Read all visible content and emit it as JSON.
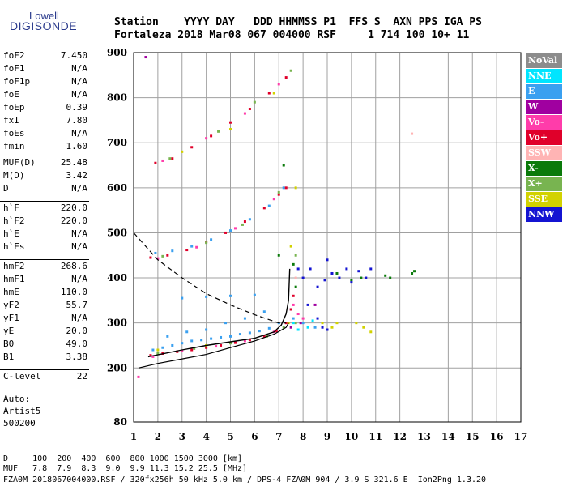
{
  "logo": {
    "top": "Lowell",
    "bottom": "DIGISONDE"
  },
  "header": {
    "line1": "Station    YYYY DAY   DDD HHMMSS P1  FFS S  AXN PPS IGA PS",
    "line2": "Fortaleza 2018 Mar08 067 004000 RSF     1 714 100 10+ 11"
  },
  "params_group1": [
    {
      "name": "foF2",
      "value": "7.450"
    },
    {
      "name": "foF1",
      "value": "N/A"
    },
    {
      "name": "foF1p",
      "value": "N/A"
    },
    {
      "name": "foE",
      "value": "N/A"
    },
    {
      "name": "foEp",
      "value": "0.39"
    },
    {
      "name": "fxI",
      "value": "7.80"
    },
    {
      "name": "foEs",
      "value": "N/A"
    },
    {
      "name": "fmin",
      "value": "1.60"
    }
  ],
  "params_group2": [
    {
      "name": "MUF(D)",
      "value": "25.48"
    },
    {
      "name": "M(D)",
      "value": "3.42"
    },
    {
      "name": "D",
      "value": "N/A"
    }
  ],
  "params_group3": [
    {
      "name": "h`F",
      "value": "220.0"
    },
    {
      "name": "h`F2",
      "value": "220.0"
    },
    {
      "name": "h`E",
      "value": "N/A"
    },
    {
      "name": "h`Es",
      "value": "N/A"
    }
  ],
  "params_group4": [
    {
      "name": "hmF2",
      "value": "268.6"
    },
    {
      "name": "hmF1",
      "value": "N/A"
    },
    {
      "name": "hmE",
      "value": "110.0"
    },
    {
      "name": "yF2",
      "value": "55.7"
    },
    {
      "name": "yF1",
      "value": "N/A"
    },
    {
      "name": "yE",
      "value": "20.0"
    },
    {
      "name": "B0",
      "value": "49.0"
    },
    {
      "name": "B1",
      "value": "3.38"
    }
  ],
  "params_group5": [
    {
      "name": "C-level",
      "value": "22"
    }
  ],
  "auto": {
    "line1": "Auto:",
    "line2": "Artist5",
    "line3": "500200"
  },
  "legend": [
    {
      "label": "NoVal",
      "color": "#8c8c8c"
    },
    {
      "label": "NNE",
      "color": "#00e5ff"
    },
    {
      "label": "E",
      "color": "#3aa0f0"
    },
    {
      "label": "W",
      "color": "#a000a0"
    },
    {
      "label": "Vo-",
      "color": "#ff3caa"
    },
    {
      "label": "Vo+",
      "color": "#e0002a"
    },
    {
      "label": "SSW",
      "color": "#ffb4b4"
    },
    {
      "label": "X-",
      "color": "#0a7a0a"
    },
    {
      "label": "X+",
      "color": "#78b450"
    },
    {
      "label": "SSE",
      "color": "#d2d200"
    },
    {
      "label": "NNW",
      "color": "#1414d2"
    }
  ],
  "bottom": {
    "d_row": "D     100  200  400  600  800 1000 1500 3000 [km]",
    "muf_row": "MUF   7.8  7.9  8.3  9.0  9.9 11.3 15.2 25.5 [MHz]",
    "footer": "FZA0M_2018067004000.RSF / 320fx256h 50 kHz 5.0 km / DPS-4 FZA0M 904 / 3.9 S 321.6 E  Ion2Png 1.3.20"
  },
  "chart_data": {
    "type": "scatter",
    "title": "",
    "xlabel": "",
    "ylabel": "",
    "xlim": [
      1,
      17
    ],
    "ylim": [
      80,
      900
    ],
    "x_ticks": [
      "1",
      "2",
      "3",
      "4",
      "5",
      "6",
      "7",
      "8",
      "9",
      "10",
      "11",
      "12",
      "13",
      "14",
      "15",
      "16",
      "17"
    ],
    "y_ticks": [
      "80",
      "200",
      "300",
      "400",
      "500",
      "600",
      "700",
      "800",
      "900"
    ],
    "grid": true,
    "legend_position": "right",
    "series": [
      {
        "name": "E",
        "color": "#3aa0f0",
        "points": [
          [
            1.8,
            240
          ],
          [
            2.2,
            245
          ],
          [
            2.6,
            250
          ],
          [
            3.0,
            255
          ],
          [
            3.4,
            260
          ],
          [
            3.8,
            262
          ],
          [
            4.2,
            265
          ],
          [
            4.6,
            268
          ],
          [
            5.0,
            270
          ],
          [
            5.4,
            275
          ],
          [
            5.8,
            278
          ],
          [
            6.2,
            282
          ],
          [
            6.6,
            288
          ],
          [
            7.0,
            300
          ],
          [
            2.4,
            270
          ],
          [
            3.2,
            280
          ],
          [
            4.0,
            285
          ],
          [
            4.8,
            300
          ],
          [
            5.6,
            310
          ],
          [
            6.4,
            325
          ],
          [
            3.0,
            355
          ],
          [
            4.0,
            358
          ],
          [
            5.0,
            360
          ],
          [
            6.0,
            362
          ],
          [
            7.5,
            330
          ],
          [
            7.6,
            310
          ],
          [
            8.0,
            300
          ],
          [
            8.5,
            290
          ],
          [
            1.9,
            455
          ],
          [
            2.6,
            460
          ],
          [
            3.4,
            470
          ],
          [
            4.2,
            485
          ],
          [
            5.0,
            505
          ],
          [
            5.8,
            530
          ],
          [
            6.6,
            560
          ],
          [
            7.2,
            600
          ]
        ]
      },
      {
        "name": "Vo+",
        "color": "#e0002a",
        "points": [
          [
            1.7,
            228
          ],
          [
            2.2,
            232
          ],
          [
            2.8,
            236
          ],
          [
            3.4,
            240
          ],
          [
            4.0,
            245
          ],
          [
            4.6,
            250
          ],
          [
            5.2,
            256
          ],
          [
            5.8,
            262
          ],
          [
            6.4,
            270
          ],
          [
            6.9,
            282
          ],
          [
            7.3,
            300
          ],
          [
            7.5,
            330
          ],
          [
            7.6,
            360
          ],
          [
            1.7,
            445
          ],
          [
            2.4,
            450
          ],
          [
            3.2,
            462
          ],
          [
            4.0,
            480
          ],
          [
            4.8,
            500
          ],
          [
            5.6,
            525
          ],
          [
            6.4,
            555
          ],
          [
            7.0,
            585
          ],
          [
            7.3,
            600
          ],
          [
            1.9,
            655
          ],
          [
            2.6,
            665
          ],
          [
            3.4,
            690
          ],
          [
            4.2,
            715
          ],
          [
            5.0,
            745
          ],
          [
            5.8,
            775
          ],
          [
            6.6,
            810
          ],
          [
            7.3,
            845
          ]
        ]
      },
      {
        "name": "Vo-",
        "color": "#ff3caa",
        "points": [
          [
            1.8,
            225
          ],
          [
            3.0,
            238
          ],
          [
            4.4,
            248
          ],
          [
            5.6,
            260
          ],
          [
            6.8,
            280
          ],
          [
            7.6,
            340
          ],
          [
            7.8,
            320
          ],
          [
            8.0,
            310
          ],
          [
            2.0,
            443
          ],
          [
            3.6,
            468
          ],
          [
            5.2,
            510
          ],
          [
            6.8,
            575
          ],
          [
            2.2,
            660
          ],
          [
            4.0,
            710
          ],
          [
            5.6,
            765
          ],
          [
            7.0,
            830
          ],
          [
            1.2,
            180
          ]
        ]
      },
      {
        "name": "X+",
        "color": "#78b450",
        "points": [
          [
            2.0,
            232
          ],
          [
            3.5,
            243
          ],
          [
            5.0,
            255
          ],
          [
            6.5,
            270
          ],
          [
            7.2,
            290
          ],
          [
            7.7,
            300
          ],
          [
            7.7,
            450
          ],
          [
            2.2,
            448
          ],
          [
            4.0,
            478
          ],
          [
            5.5,
            518
          ],
          [
            7.0,
            590
          ],
          [
            2.5,
            665
          ],
          [
            4.5,
            725
          ],
          [
            6.0,
            790
          ],
          [
            7.5,
            860
          ]
        ]
      },
      {
        "name": "X-",
        "color": "#0a7a0a",
        "points": [
          [
            7.6,
            430
          ],
          [
            7.7,
            380
          ],
          [
            9.4,
            410
          ],
          [
            10.0,
            395
          ],
          [
            10.4,
            400
          ],
          [
            11.4,
            405
          ],
          [
            11.6,
            400
          ],
          [
            12.5,
            410
          ],
          [
            12.6,
            415
          ],
          [
            7.2,
            650
          ],
          [
            7.0,
            450
          ]
        ]
      },
      {
        "name": "SSE",
        "color": "#d2d200",
        "points": [
          [
            2.0,
            240
          ],
          [
            4.0,
            250
          ],
          [
            7.4,
            300
          ],
          [
            7.5,
            470
          ],
          [
            7.7,
            600
          ],
          [
            8.8,
            300
          ],
          [
            9.2,
            290
          ],
          [
            9.4,
            300
          ],
          [
            10.2,
            300
          ],
          [
            10.5,
            290
          ],
          [
            10.8,
            280
          ],
          [
            3.0,
            680
          ],
          [
            5.0,
            730
          ],
          [
            6.8,
            810
          ]
        ]
      },
      {
        "name": "NNW",
        "color": "#1414d2",
        "points": [
          [
            7.8,
            420
          ],
          [
            8.0,
            400
          ],
          [
            8.3,
            420
          ],
          [
            8.6,
            380
          ],
          [
            8.9,
            395
          ],
          [
            9.0,
            440
          ],
          [
            9.2,
            410
          ],
          [
            9.5,
            400
          ],
          [
            9.8,
            420
          ],
          [
            10.0,
            390
          ],
          [
            10.3,
            415
          ],
          [
            10.6,
            400
          ],
          [
            10.8,
            420
          ],
          [
            8.2,
            340
          ],
          [
            8.6,
            310
          ],
          [
            8.8,
            290
          ],
          [
            9.0,
            285
          ]
        ]
      },
      {
        "name": "NNE",
        "color": "#00e5ff",
        "points": [
          [
            7.6,
            300
          ],
          [
            8.2,
            290
          ],
          [
            8.4,
            305
          ],
          [
            7.8,
            285
          ]
        ]
      },
      {
        "name": "W",
        "color": "#a000a0",
        "points": [
          [
            7.5,
            290
          ],
          [
            7.9,
            300
          ],
          [
            8.5,
            340
          ],
          [
            1.5,
            890
          ]
        ]
      },
      {
        "name": "SSW",
        "color": "#ffb4b4",
        "points": [
          [
            12.5,
            720
          ],
          [
            7.7,
            400
          ]
        ]
      }
    ],
    "profile_curve_solid": [
      [
        1.2,
        200
      ],
      [
        2,
        210
      ],
      [
        3,
        220
      ],
      [
        4,
        230
      ],
      [
        5,
        245
      ],
      [
        6,
        260
      ],
      [
        6.8,
        275
      ],
      [
        7.3,
        290
      ],
      [
        7.4,
        300
      ]
    ],
    "profile_curve_dashed": [
      [
        1.0,
        500
      ],
      [
        1.5,
        470
      ],
      [
        2.0,
        440
      ],
      [
        3.0,
        400
      ],
      [
        4.0,
        365
      ],
      [
        5.0,
        340
      ],
      [
        6.0,
        318
      ],
      [
        7.0,
        300
      ],
      [
        7.3,
        300
      ]
    ],
    "trace_curve_black": [
      [
        1.6,
        225
      ],
      [
        3,
        240
      ],
      [
        4,
        250
      ],
      [
        5,
        258
      ],
      [
        6,
        266
      ],
      [
        6.8,
        280
      ],
      [
        7.1,
        295
      ],
      [
        7.3,
        320
      ],
      [
        7.4,
        350
      ],
      [
        7.45,
        420
      ]
    ]
  }
}
